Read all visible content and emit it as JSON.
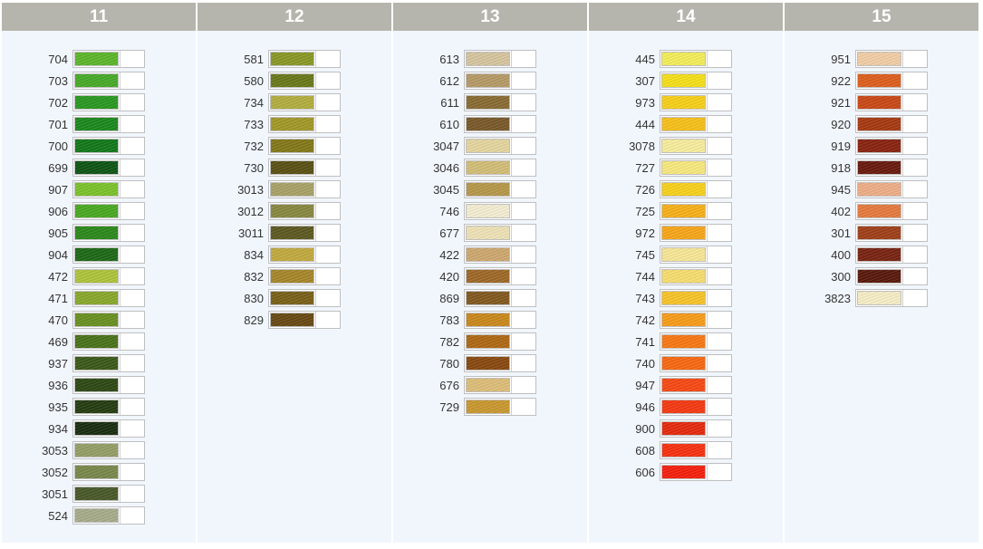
{
  "columns": [
    {
      "title": "11",
      "items": [
        {
          "code": "704",
          "color": "#5db82a"
        },
        {
          "code": "703",
          "color": "#48ac28"
        },
        {
          "code": "702",
          "color": "#2a9a22"
        },
        {
          "code": "701",
          "color": "#1c8a1e"
        },
        {
          "code": "700",
          "color": "#137a1a"
        },
        {
          "code": "699",
          "color": "#0e5615"
        },
        {
          "code": "907",
          "color": "#7cc52a"
        },
        {
          "code": "906",
          "color": "#4aab22"
        },
        {
          "code": "905",
          "color": "#2c8a1c"
        },
        {
          "code": "904",
          "color": "#1e6a16"
        },
        {
          "code": "472",
          "color": "#b0c63c"
        },
        {
          "code": "471",
          "color": "#8aaa2c"
        },
        {
          "code": "470",
          "color": "#6a9222"
        },
        {
          "code": "469",
          "color": "#4a741a"
        },
        {
          "code": "937",
          "color": "#3c5a18"
        },
        {
          "code": "936",
          "color": "#2e4a14"
        },
        {
          "code": "935",
          "color": "#253d12"
        },
        {
          "code": "934",
          "color": "#1a2e10"
        },
        {
          "code": "3053",
          "color": "#96a066"
        },
        {
          "code": "3052",
          "color": "#7a8a4c"
        },
        {
          "code": "3051",
          "color": "#4a5a28"
        },
        {
          "code": "524",
          "color": "#a8ae8c"
        }
      ]
    },
    {
      "title": "12",
      "items": [
        {
          "code": "581",
          "color": "#8a9a26"
        },
        {
          "code": "580",
          "color": "#6a7a1a"
        },
        {
          "code": "734",
          "color": "#b4b040"
        },
        {
          "code": "733",
          "color": "#a49a28"
        },
        {
          "code": "732",
          "color": "#847a1a"
        },
        {
          "code": "730",
          "color": "#5a5214"
        },
        {
          "code": "3013",
          "color": "#aaa468"
        },
        {
          "code": "3012",
          "color": "#8a8a42"
        },
        {
          "code": "3011",
          "color": "#5e5a22"
        },
        {
          "code": "834",
          "color": "#c4ac40"
        },
        {
          "code": "832",
          "color": "#a8882a"
        },
        {
          "code": "830",
          "color": "#7a6218"
        },
        {
          "code": "829",
          "color": "#6a4a14"
        }
      ]
    },
    {
      "title": "13",
      "items": [
        {
          "code": "613",
          "color": "#d8c8a0"
        },
        {
          "code": "612",
          "color": "#b89c68"
        },
        {
          "code": "611",
          "color": "#8a6c34"
        },
        {
          "code": "610",
          "color": "#7a5a2a"
        },
        {
          "code": "3047",
          "color": "#e8d8a0"
        },
        {
          "code": "3046",
          "color": "#d4c078"
        },
        {
          "code": "3045",
          "color": "#b89a4a"
        },
        {
          "code": "746",
          "color": "#f6f0d4"
        },
        {
          "code": "677",
          "color": "#f0e4b8"
        },
        {
          "code": "422",
          "color": "#d0aa70"
        },
        {
          "code": "420",
          "color": "#a06a28"
        },
        {
          "code": "869",
          "color": "#845a20"
        },
        {
          "code": "783",
          "color": "#cc8a1c"
        },
        {
          "code": "782",
          "color": "#b06a14"
        },
        {
          "code": "780",
          "color": "#8a4a10"
        },
        {
          "code": "676",
          "color": "#e0c07a"
        },
        {
          "code": "729",
          "color": "#cc9a30"
        }
      ]
    },
    {
      "title": "14",
      "items": [
        {
          "code": "445",
          "color": "#f6f05a"
        },
        {
          "code": "307",
          "color": "#f8e21a"
        },
        {
          "code": "973",
          "color": "#fad21a"
        },
        {
          "code": "444",
          "color": "#fac21a"
        },
        {
          "code": "3078",
          "color": "#faf0a0"
        },
        {
          "code": "727",
          "color": "#faec80"
        },
        {
          "code": "726",
          "color": "#fad41c"
        },
        {
          "code": "725",
          "color": "#fab21a"
        },
        {
          "code": "972",
          "color": "#faa81a"
        },
        {
          "code": "745",
          "color": "#faea98"
        },
        {
          "code": "744",
          "color": "#fae070"
        },
        {
          "code": "743",
          "color": "#fac62a"
        },
        {
          "code": "742",
          "color": "#fa9e1a"
        },
        {
          "code": "741",
          "color": "#fa7a14"
        },
        {
          "code": "740",
          "color": "#fa6a12"
        },
        {
          "code": "947",
          "color": "#fa4a14"
        },
        {
          "code": "946",
          "color": "#f83a12"
        },
        {
          "code": "900",
          "color": "#e82a0e"
        },
        {
          "code": "608",
          "color": "#fa3210"
        },
        {
          "code": "606",
          "color": "#f8200e"
        }
      ]
    },
    {
      "title": "15",
      "items": [
        {
          "code": "951",
          "color": "#f4d0a8"
        },
        {
          "code": "922",
          "color": "#e0601e"
        },
        {
          "code": "921",
          "color": "#cc4a16"
        },
        {
          "code": "920",
          "color": "#a83a12"
        },
        {
          "code": "919",
          "color": "#8a2410"
        },
        {
          "code": "918",
          "color": "#6a1a0e"
        },
        {
          "code": "945",
          "color": "#f0b088"
        },
        {
          "code": "402",
          "color": "#e87c40"
        },
        {
          "code": "301",
          "color": "#a2401a"
        },
        {
          "code": "400",
          "color": "#7a2412"
        },
        {
          "code": "300",
          "color": "#5a1a0c"
        },
        {
          "code": "3823",
          "color": "#f8f0c8"
        }
      ]
    }
  ]
}
